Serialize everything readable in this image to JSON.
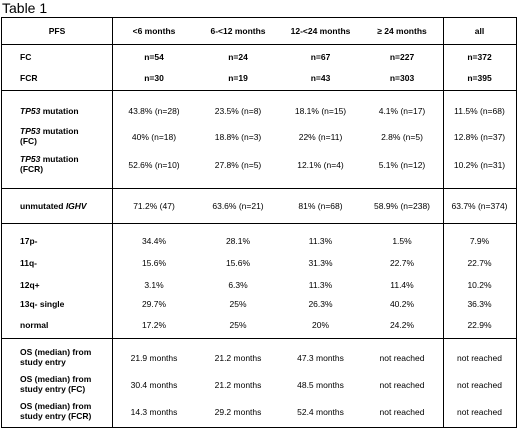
{
  "caption": "Table 1",
  "header": {
    "pfs": "PFS",
    "c1": "<6 months",
    "c2": "6-<12 months",
    "c3": "12-<24 months",
    "c4": "≥ 24 months",
    "c5": "all"
  },
  "counts": [
    {
      "label": "FC",
      "values": [
        "n=54",
        "n=24",
        "n=67",
        "n=227",
        "n=372"
      ]
    },
    {
      "label": "FCR",
      "values": [
        "n=30",
        "n=19",
        "n=43",
        "n=303",
        "n=395"
      ]
    }
  ],
  "tp53": [
    {
      "gene": "TP53",
      "rest1": " mutation",
      "rest2": "",
      "values": [
        "43.8% (n=28)",
        "23.5% (n=8)",
        "18.1% (n=15)",
        "4.1% (n=17)",
        "11.5% (n=68)"
      ]
    },
    {
      "gene": "TP53",
      "rest1": " mutation",
      "rest2": "(FC)",
      "values": [
        "40% (n=18)",
        "18.8% (n=3)",
        "22% (n=11)",
        "2.8% (n=5)",
        "12.8% (n=37)"
      ]
    },
    {
      "gene": "TP53",
      "rest1": " mutation",
      "rest2": "(FCR)",
      "values": [
        "52.6% (n=10)",
        "27.8% (n=5)",
        "12.1% (n=4)",
        "5.1% (n=12)",
        "10.2% (n=31)"
      ]
    }
  ],
  "ighv": {
    "pre": "unmutated ",
    "gene": "IGHV",
    "values": [
      "71.2% (47)",
      "63.6% (n=21)",
      "81% (n=68)",
      "58.9% (n=238)",
      "63.7% (n=374)"
    ]
  },
  "cyto": [
    {
      "label": "17p-",
      "values": [
        "34.4%",
        "28.1%",
        "11.3%",
        "1.5%",
        "7.9%"
      ]
    },
    {
      "label": "11q-",
      "values": [
        "15.6%",
        "15.6%",
        "31.3%",
        "22.7%",
        "22.7%"
      ]
    },
    {
      "label": "12q+",
      "values": [
        "3.1%",
        "6.3%",
        "11.3%",
        "11.4%",
        "10.2%"
      ]
    },
    {
      "label": "13q- single",
      "values": [
        "29.7%",
        "25%",
        "26.3%",
        "40.2%",
        "36.3%"
      ]
    },
    {
      "label": "normal",
      "values": [
        "17.2%",
        "25%",
        "20%",
        "24.2%",
        "22.9%"
      ]
    }
  ],
  "os": [
    {
      "l1": "OS (median) from",
      "l2": "study entry",
      "values": [
        "21.9 months",
        "21.2 months",
        "47.3 months",
        "not reached",
        "not reached"
      ]
    },
    {
      "l1": "OS (median) from",
      "l2": "study entry (FC)",
      "values": [
        "30.4 months",
        "21.2 months",
        "48.5 months",
        "not reached",
        "not reached"
      ]
    },
    {
      "l1": "OS (median) from",
      "l2": "study entry (FCR)",
      "values": [
        "14.3 months",
        "29.2 months",
        "52.4 months",
        "not reached",
        "not reached"
      ]
    }
  ]
}
